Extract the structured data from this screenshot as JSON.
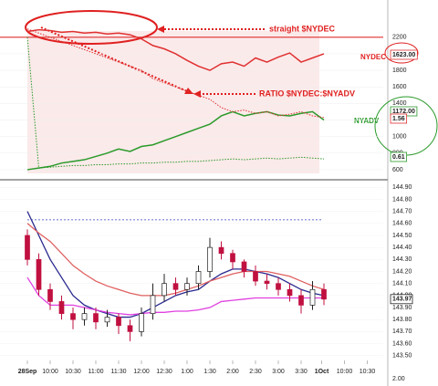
{
  "chart_data": [
    {
      "type": "line",
      "x": [
        0,
        0.5,
        1,
        1.5,
        2,
        2.5,
        3,
        3.5,
        4,
        4.5,
        5,
        5.5,
        6,
        6.5,
        7,
        7.5,
        8,
        8.5,
        9,
        9.5,
        10,
        10.5,
        11,
        11.5,
        12,
        12.5,
        13
      ],
      "xlim": [
        -1.2,
        15.6
      ],
      "ylim": [
        500,
        2650
      ],
      "yticks": [
        2200,
        2000,
        1800,
        1600,
        1400,
        1200,
        1000,
        800,
        600
      ],
      "series": [
        {
          "name": "NYDEC",
          "color": "#e03030",
          "style": "solid",
          "values": [
            2270,
            2290,
            2280,
            2260,
            2270,
            2250,
            2260,
            2240,
            2250,
            2230,
            2180,
            2100,
            2060,
            2000,
            1920,
            1850,
            1800,
            1880,
            1900,
            1850,
            1950,
            1900,
            1960,
            2010,
            1900,
            1950,
            2000
          ],
          "value_labels": [
            "1623.00"
          ]
        },
        {
          "name": "NYADV",
          "color": "#2a9a2a",
          "style": "solid",
          "values": [
            600,
            620,
            640,
            680,
            700,
            720,
            760,
            800,
            850,
            820,
            880,
            900,
            950,
            1000,
            1050,
            1100,
            1150,
            1250,
            1300,
            1250,
            1280,
            1300,
            1260,
            1250,
            1280,
            1300,
            1200
          ],
          "value_labels": [
            "1172.00"
          ]
        },
        {
          "name": "RATIO $NYDEC:$NYADV",
          "color": "#e03030",
          "style": "dotted",
          "values": [
            2300,
            2250,
            2200,
            2150,
            2100,
            2050,
            2000,
            1950,
            1900,
            1850,
            1800,
            1700,
            1650,
            1600,
            1550,
            1500,
            1450,
            1350,
            1300,
            1320,
            1280,
            1300,
            1250,
            1270,
            1300,
            1250,
            1230
          ],
          "value_labels": [
            "1.56"
          ]
        },
        {
          "name": "RATIO",
          "color": "#2a9a2a",
          "style": "dotted",
          "values": [
            2200,
            620,
            630,
            640,
            650,
            650,
            660,
            660,
            670,
            670,
            680,
            680,
            690,
            690,
            700,
            700,
            710,
            720,
            730,
            720,
            730,
            740,
            730,
            740,
            750,
            740,
            730
          ],
          "value_labels": [
            "0.61"
          ]
        }
      ],
      "annotations": [
        "straight $NYDEC",
        "RATIO $NYDEC:$NYADV"
      ]
    },
    {
      "type": "candlestick",
      "x": [
        0,
        0.5,
        1,
        1.5,
        2,
        2.5,
        3,
        3.5,
        4,
        4.5,
        5,
        5.5,
        6,
        6.5,
        7,
        7.5,
        8,
        8.5,
        9,
        9.5,
        10,
        10.5,
        11,
        11.5,
        12,
        12.5,
        13
      ],
      "xlim": [
        -1.2,
        15.6
      ],
      "ylim": [
        143.46,
        144.94
      ],
      "yticks": [
        {
          "value": 144.9,
          "label": "144.90"
        },
        {
          "value": 144.8,
          "label": "144.80"
        },
        {
          "value": 144.7,
          "label": "144.70"
        },
        {
          "value": 144.6,
          "label": "144.60"
        },
        {
          "value": 144.5,
          "label": "144.50"
        },
        {
          "value": 144.4,
          "label": "144.40"
        },
        {
          "value": 144.3,
          "label": "144.30"
        },
        {
          "value": 144.2,
          "label": "144.20"
        },
        {
          "value": 144.1,
          "label": "144.10"
        },
        {
          "value": 144,
          "label": "144.00"
        },
        {
          "value": 143.9,
          "label": "143.90"
        },
        {
          "value": 143.8,
          "label": "143.80"
        },
        {
          "value": 143.7,
          "label": "143.70"
        },
        {
          "value": 143.6,
          "label": "143.60"
        },
        {
          "value": 143.5,
          "label": "143.50"
        }
      ],
      "xticks": [
        {
          "value": 0,
          "label": "28Sep"
        },
        {
          "value": 1,
          "label": "10:00"
        },
        {
          "value": 2,
          "label": "10:30"
        },
        {
          "value": 3,
          "label": "11:00"
        },
        {
          "value": 4,
          "label": "11:30"
        },
        {
          "value": 5,
          "label": "12:00"
        },
        {
          "value": 6,
          "label": "12:30"
        },
        {
          "value": 7,
          "label": "1:00"
        },
        {
          "value": 8,
          "label": "1:30"
        },
        {
          "value": 9,
          "label": "2:00"
        },
        {
          "value": 10,
          "label": "2:30"
        },
        {
          "value": 11,
          "label": "3:00"
        },
        {
          "value": 12,
          "label": "3:30"
        },
        {
          "value": 12.9,
          "label": "1Oct"
        },
        {
          "value": 13.9,
          "label": "10:00"
        },
        {
          "value": 14.9,
          "label": "10:30"
        }
      ],
      "open": [
        144.5,
        144.3,
        144.05,
        143.95,
        143.85,
        143.8,
        143.85,
        143.78,
        143.82,
        143.75,
        143.7,
        143.85,
        144,
        144.1,
        144.05,
        144.1,
        144.2,
        144.4,
        144.35,
        144.28,
        144.2,
        144.12,
        144.1,
        144.05,
        144,
        143.92,
        144.05
      ],
      "high": [
        144.55,
        144.35,
        144.1,
        144,
        143.9,
        143.9,
        143.9,
        143.88,
        143.85,
        143.8,
        143.9,
        144.1,
        144.18,
        144.15,
        144.15,
        144.25,
        144.48,
        144.45,
        144.38,
        144.3,
        144.25,
        144.18,
        144.15,
        144.1,
        144.05,
        144.12,
        144.1
      ],
      "low": [
        144.25,
        144,
        143.88,
        143.8,
        143.72,
        143.75,
        143.72,
        143.74,
        143.68,
        143.62,
        143.66,
        143.8,
        143.95,
        144,
        144,
        144.05,
        144.15,
        144.3,
        144.22,
        144.15,
        144.08,
        144.05,
        144,
        143.95,
        143.85,
        143.88,
        143.92
      ],
      "close": [
        144.3,
        144.05,
        143.95,
        143.85,
        143.8,
        143.85,
        143.78,
        143.82,
        143.75,
        143.7,
        143.85,
        144,
        144.1,
        144.05,
        144.1,
        144.2,
        144.4,
        144.35,
        144.28,
        144.2,
        144.12,
        144.1,
        144.05,
        144,
        143.92,
        144.05,
        143.97
      ],
      "close_label": "143.97",
      "series": [
        {
          "name": "MA fast",
          "color": "#2a2a90",
          "values": [
            144.7,
            144.5,
            144.3,
            144.15,
            144,
            143.92,
            143.88,
            143.85,
            143.82,
            143.82,
            143.85,
            143.9,
            143.95,
            144,
            144.03,
            144.05,
            144.12,
            144.18,
            144.22,
            144.22,
            144.2,
            144.18,
            144.15,
            144.1,
            144.05,
            144.02,
            144
          ]
        },
        {
          "name": "MA slow",
          "color": "#e06060",
          "values": [
            144.6,
            144.52,
            144.45,
            144.35,
            144.25,
            144.18,
            144.12,
            144.08,
            144.05,
            144.02,
            144,
            144,
            144,
            144.02,
            144.05,
            144.08,
            144.12,
            144.15,
            144.18,
            144.2,
            144.2,
            144.2,
            144.18,
            144.16,
            144.12,
            144.08,
            144.05
          ]
        },
        {
          "name": "VWAP",
          "color": "#e040e0",
          "values": [
            144.15,
            144,
            143.92,
            143.92,
            143.92,
            143.9,
            143.88,
            143.86,
            143.85,
            143.84,
            143.85,
            143.86,
            143.86,
            143.87,
            143.87,
            143.88,
            143.9,
            143.95,
            143.96,
            143.97,
            143.98,
            143.98,
            143.98,
            143.98,
            143.98,
            143.98,
            143.98
          ]
        }
      ],
      "reference_line": 144.63,
      "volume_tick": "2.00"
    }
  ]
}
